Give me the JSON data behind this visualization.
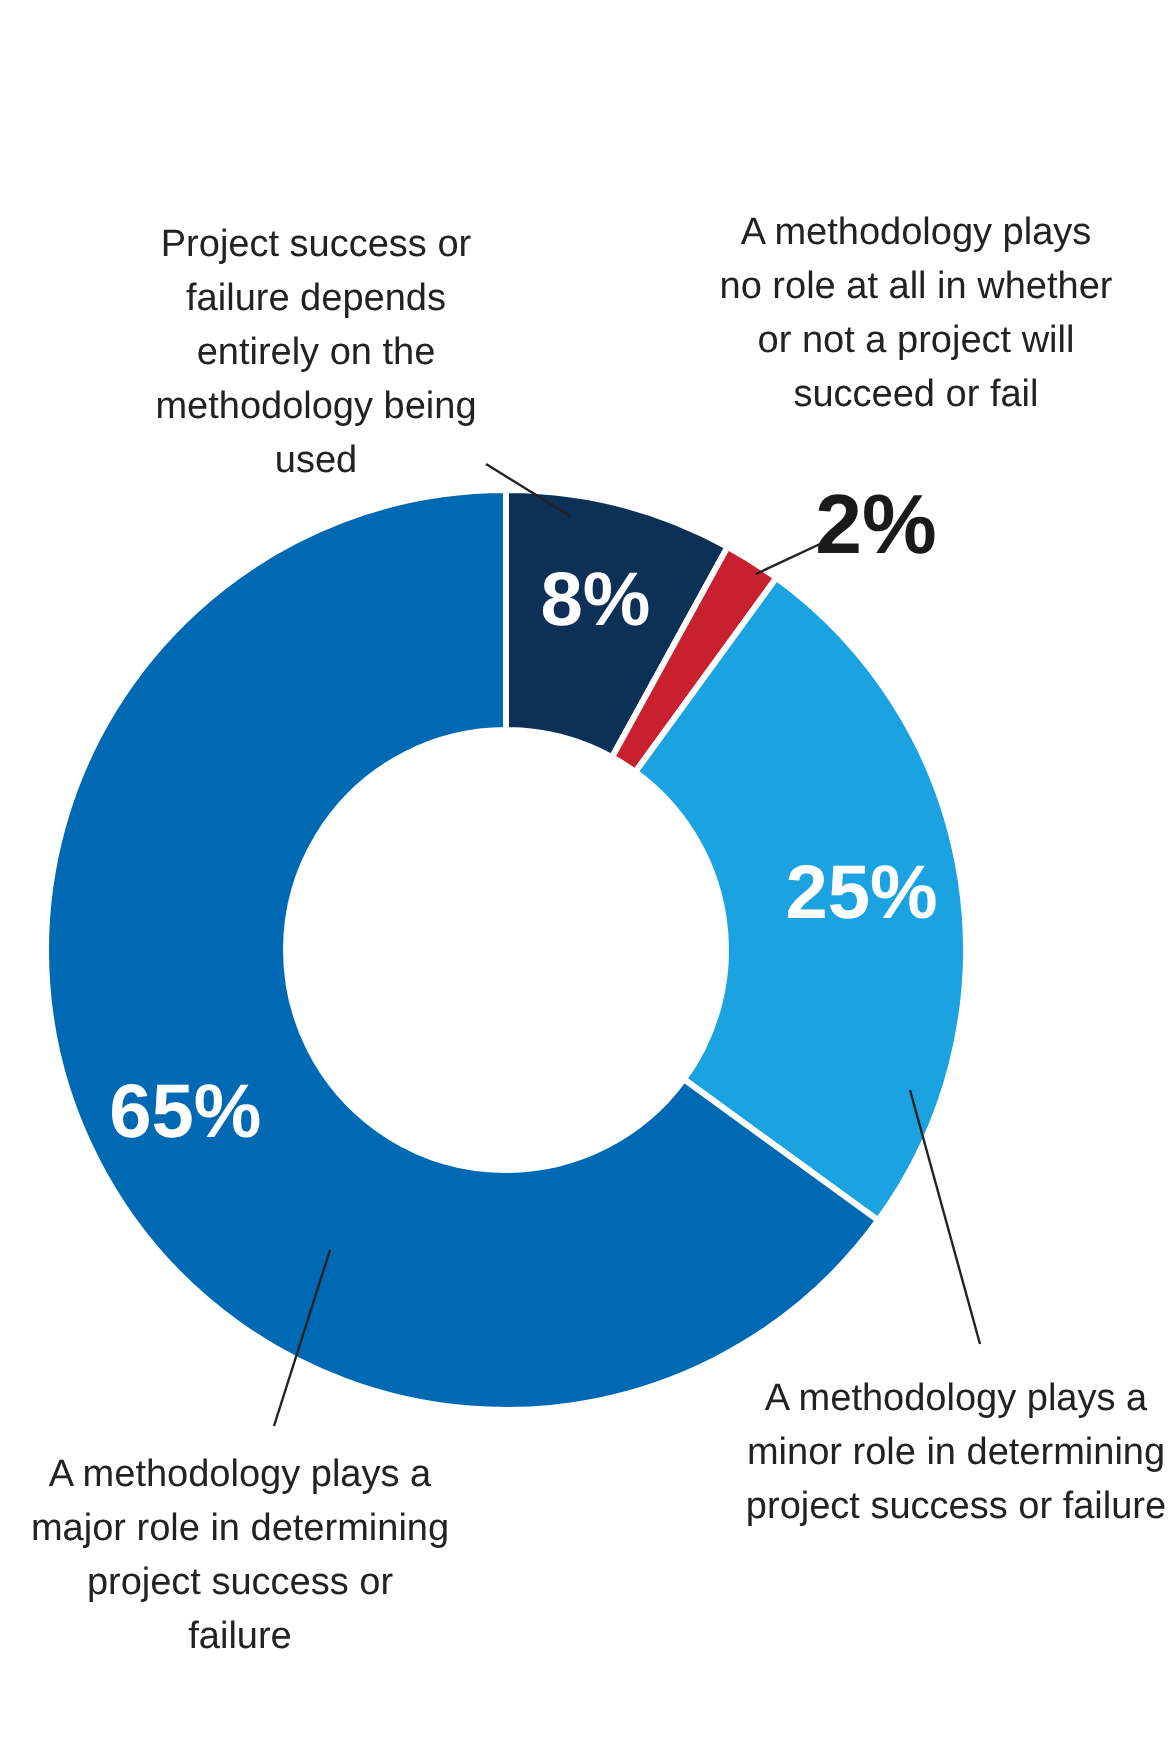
{
  "chart_data": {
    "type": "donut",
    "categories": [
      "Project success or failure depends entirely on the methodology being used",
      "A methodology plays no role at all in whether or not a project will succeed or fail",
      "A methodology plays a minor role in determining project success or failure",
      "A methodology plays a major role in determining project success or failure"
    ],
    "values": [
      8,
      2,
      25,
      65
    ],
    "colors": [
      "#0d3057",
      "#c8202f",
      "#1aa3e0",
      "#0069b4"
    ],
    "value_labels": [
      "8%",
      "2%",
      "25%",
      "65%"
    ]
  }
}
